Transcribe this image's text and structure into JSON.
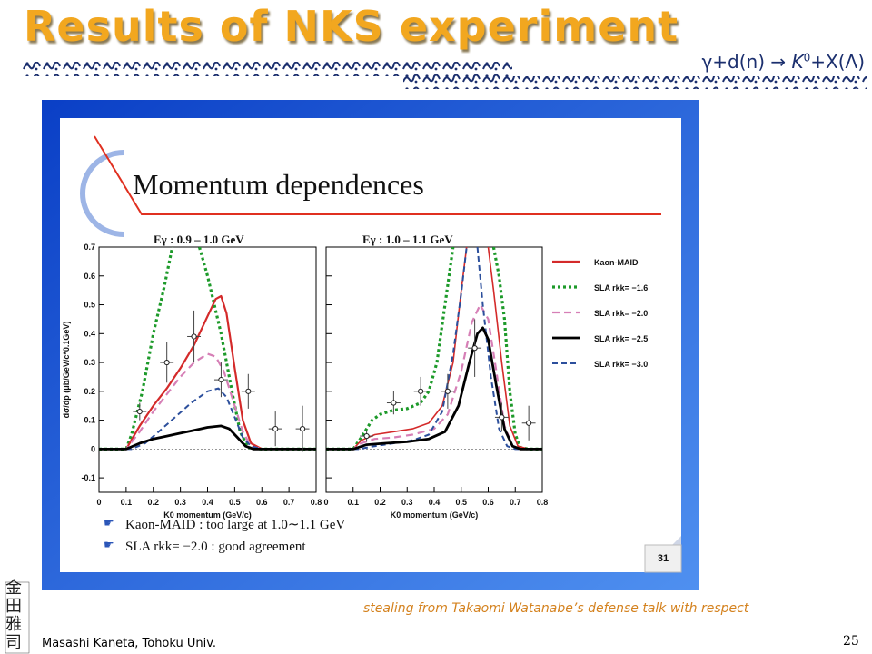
{
  "slide": {
    "title": "Results of NKS experiment",
    "reaction_parts": [
      "γ+d(n) → ",
      "K",
      "0",
      "+X(Λ)"
    ],
    "credit": "stealing from Takaomi Watanabe’s defense talk with respect",
    "author": "Masashi Kaneta, Tohoku Univ.",
    "page_number": "25",
    "seal_chars": "金田雅司",
    "colors": {
      "title": "#f2a71f",
      "reaction": "#1b2f6e",
      "credit": "#d4821f",
      "panel_blue": "#1f5fd8"
    }
  },
  "panel": {
    "heading": "Momentum dependences",
    "slide_number": "31",
    "bullets": [
      "Kaon-MAID : too large at 1.0∼1.1 GeV",
      "SLA rkk= −2.0 : good agreement"
    ],
    "bullet_icon": "pointing-hand-icon"
  },
  "chart_data": {
    "type": "line",
    "ylabel": "dσ/dp (μb/GeV/c*0.1GeV)",
    "xlabel": "K0 momentum (GeV/c)",
    "ylim": [
      -0.15,
      0.7
    ],
    "xlim": [
      0,
      0.8
    ],
    "xticks": [
      "0",
      "0.1",
      "0.2",
      "0.3",
      "0.4",
      "0.5",
      "0.6",
      "0.7",
      "0.8"
    ],
    "yticks": [
      "-0.1",
      "0",
      "0.1",
      "0.2",
      "0.3",
      "0.4",
      "0.5",
      "0.6",
      "0.7"
    ],
    "legend_position": "right",
    "legend": [
      {
        "label": "Kaon-MAID",
        "color": "#d42a2a",
        "dash": "solid",
        "width": 2.2
      },
      {
        "label": "SLA rkk= −1.6",
        "color": "#1d9a2a",
        "dash": "3,3",
        "width": 3.2
      },
      {
        "label": "SLA rkk= −2.0",
        "color": "#d67fb6",
        "dash": "8,5",
        "width": 2.2
      },
      {
        "label": "SLA rkk= −2.5",
        "color": "#000000",
        "dash": "solid",
        "width": 2.8
      },
      {
        "label": "SLA rkk= −3.0",
        "color": "#2c4f9c",
        "dash": "6,4",
        "width": 2.0
      }
    ],
    "panels": [
      {
        "title": "Eγ : 0.9 – 1.0 GeV",
        "series": [
          {
            "color": "#1d9a2a",
            "dash": "3,3",
            "width": 3.2,
            "points": [
              [
                0,
                0
              ],
              [
                0.1,
                0
              ],
              [
                0.12,
                0.05
              ],
              [
                0.16,
                0.2
              ],
              [
                0.2,
                0.4
              ],
              [
                0.24,
                0.56
              ],
              [
                0.27,
                0.7
              ]
            ],
            "points2": [
              [
                0.37,
                0.7
              ],
              [
                0.4,
                0.6
              ],
              [
                0.45,
                0.4
              ],
              [
                0.49,
                0.2
              ],
              [
                0.52,
                0.06
              ],
              [
                0.55,
                0.005
              ],
              [
                0.6,
                0
              ],
              [
                0.8,
                0
              ]
            ]
          },
          {
            "color": "#d42a2a",
            "dash": "solid",
            "width": 2.2,
            "points": [
              [
                0,
                0
              ],
              [
                0.1,
                0
              ],
              [
                0.15,
                0.08
              ],
              [
                0.2,
                0.15
              ],
              [
                0.25,
                0.21
              ],
              [
                0.3,
                0.28
              ],
              [
                0.35,
                0.36
              ],
              [
                0.4,
                0.46
              ],
              [
                0.43,
                0.52
              ],
              [
                0.45,
                0.53
              ],
              [
                0.47,
                0.47
              ],
              [
                0.5,
                0.28
              ],
              [
                0.53,
                0.1
              ],
              [
                0.56,
                0.02
              ],
              [
                0.6,
                0
              ],
              [
                0.8,
                0
              ]
            ]
          },
          {
            "color": "#d67fb6",
            "dash": "8,5",
            "width": 2.2,
            "points": [
              [
                0,
                0
              ],
              [
                0.1,
                0
              ],
              [
                0.15,
                0.06
              ],
              [
                0.2,
                0.13
              ],
              [
                0.25,
                0.19
              ],
              [
                0.3,
                0.25
              ],
              [
                0.35,
                0.3
              ],
              [
                0.4,
                0.33
              ],
              [
                0.43,
                0.32
              ],
              [
                0.46,
                0.27
              ],
              [
                0.5,
                0.15
              ],
              [
                0.53,
                0.06
              ],
              [
                0.56,
                0.01
              ],
              [
                0.6,
                0
              ],
              [
                0.8,
                0
              ]
            ]
          },
          {
            "color": "#2c4f9c",
            "dash": "6,4",
            "width": 2.0,
            "points": [
              [
                0,
                0
              ],
              [
                0.12,
                0
              ],
              [
                0.17,
                0.02
              ],
              [
                0.22,
                0.06
              ],
              [
                0.28,
                0.11
              ],
              [
                0.34,
                0.16
              ],
              [
                0.4,
                0.2
              ],
              [
                0.44,
                0.21
              ],
              [
                0.47,
                0.18
              ],
              [
                0.5,
                0.11
              ],
              [
                0.53,
                0.04
              ],
              [
                0.56,
                0.01
              ],
              [
                0.6,
                0
              ],
              [
                0.8,
                0
              ]
            ]
          },
          {
            "color": "#000000",
            "dash": "solid",
            "width": 2.8,
            "points": [
              [
                0,
                0
              ],
              [
                0.1,
                0
              ],
              [
                0.15,
                0.02
              ],
              [
                0.2,
                0.035
              ],
              [
                0.25,
                0.045
              ],
              [
                0.3,
                0.055
              ],
              [
                0.35,
                0.065
              ],
              [
                0.4,
                0.075
              ],
              [
                0.45,
                0.08
              ],
              [
                0.48,
                0.07
              ],
              [
                0.51,
                0.04
              ],
              [
                0.54,
                0.01
              ],
              [
                0.57,
                0
              ],
              [
                0.8,
                0
              ]
            ]
          }
        ],
        "datapoints": [
          {
            "x": 0.15,
            "y": 0.13,
            "xerr": 0.025,
            "yerr": 0.03
          },
          {
            "x": 0.25,
            "y": 0.3,
            "xerr": 0.025,
            "yerr": 0.07
          },
          {
            "x": 0.35,
            "y": 0.39,
            "xerr": 0.025,
            "yerr": 0.09
          },
          {
            "x": 0.45,
            "y": 0.24,
            "xerr": 0.025,
            "yerr": 0.06
          },
          {
            "x": 0.55,
            "y": 0.2,
            "xerr": 0.025,
            "yerr": 0.06
          },
          {
            "x": 0.65,
            "y": 0.07,
            "xerr": 0.025,
            "yerr": 0.06
          },
          {
            "x": 0.75,
            "y": 0.07,
            "xerr": 0.025,
            "yerr": 0.08
          }
        ]
      },
      {
        "title": "Eγ : 1.0 – 1.1 GeV",
        "series": [
          {
            "color": "#1d9a2a",
            "dash": "3,3",
            "width": 3.2,
            "points": [
              [
                0,
                0
              ],
              [
                0.1,
                0
              ],
              [
                0.13,
                0.04
              ],
              [
                0.17,
                0.1
              ],
              [
                0.2,
                0.12
              ],
              [
                0.25,
                0.135
              ],
              [
                0.3,
                0.14
              ],
              [
                0.35,
                0.16
              ],
              [
                0.38,
                0.2
              ],
              [
                0.41,
                0.3
              ],
              [
                0.44,
                0.5
              ],
              [
                0.47,
                0.7
              ]
            ],
            "points2": [
              [
                0.62,
                0.7
              ],
              [
                0.64,
                0.6
              ],
              [
                0.66,
                0.45
              ],
              [
                0.68,
                0.2
              ],
              [
                0.7,
                0.05
              ],
              [
                0.72,
                0.005
              ],
              [
                0.75,
                0
              ],
              [
                0.8,
                0
              ]
            ]
          },
          {
            "color": "#d42a2a",
            "dash": "solid",
            "width": 1.6,
            "points": [
              [
                0,
                0
              ],
              [
                0.1,
                0
              ],
              [
                0.13,
                0.03
              ],
              [
                0.18,
                0.05
              ],
              [
                0.25,
                0.06
              ],
              [
                0.32,
                0.07
              ],
              [
                0.38,
                0.09
              ],
              [
                0.43,
                0.15
              ],
              [
                0.47,
                0.3
              ],
              [
                0.5,
                0.55
              ],
              [
                0.52,
                0.7
              ]
            ],
            "points2": [
              [
                0.6,
                0.7
              ],
              [
                0.62,
                0.55
              ],
              [
                0.65,
                0.3
              ],
              [
                0.68,
                0.08
              ],
              [
                0.71,
                0.01
              ],
              [
                0.75,
                0
              ],
              [
                0.8,
                0
              ]
            ]
          },
          {
            "color": "#d67fb6",
            "dash": "8,5",
            "width": 2.2,
            "points": [
              [
                0,
                0
              ],
              [
                0.1,
                0
              ],
              [
                0.13,
                0.02
              ],
              [
                0.18,
                0.035
              ],
              [
                0.25,
                0.04
              ],
              [
                0.32,
                0.05
              ],
              [
                0.4,
                0.07
              ],
              [
                0.45,
                0.12
              ],
              [
                0.5,
                0.27
              ],
              [
                0.54,
                0.44
              ],
              [
                0.57,
                0.5
              ],
              [
                0.6,
                0.45
              ],
              [
                0.63,
                0.27
              ],
              [
                0.66,
                0.08
              ],
              [
                0.69,
                0.01
              ],
              [
                0.72,
                0
              ],
              [
                0.8,
                0
              ]
            ]
          },
          {
            "color": "#2c4f9c",
            "dash": "6,4",
            "width": 2.0,
            "points": [
              [
                0,
                0
              ],
              [
                0.12,
                0
              ],
              [
                0.18,
                0.01
              ],
              [
                0.25,
                0.02
              ],
              [
                0.32,
                0.03
              ],
              [
                0.38,
                0.05
              ],
              [
                0.43,
                0.13
              ],
              [
                0.47,
                0.33
              ],
              [
                0.5,
                0.54
              ],
              [
                0.52,
                0.7
              ]
            ],
            "points2": [
              [
                0.56,
                0.7
              ],
              [
                0.58,
                0.5
              ],
              [
                0.61,
                0.25
              ],
              [
                0.64,
                0.07
              ],
              [
                0.67,
                0.01
              ],
              [
                0.7,
                0
              ],
              [
                0.8,
                0
              ]
            ]
          },
          {
            "color": "#000000",
            "dash": "solid",
            "width": 2.8,
            "points": [
              [
                0,
                0
              ],
              [
                0.1,
                0
              ],
              [
                0.15,
                0.015
              ],
              [
                0.22,
                0.02
              ],
              [
                0.3,
                0.025
              ],
              [
                0.38,
                0.035
              ],
              [
                0.44,
                0.06
              ],
              [
                0.49,
                0.15
              ],
              [
                0.53,
                0.3
              ],
              [
                0.56,
                0.4
              ],
              [
                0.58,
                0.42
              ],
              [
                0.6,
                0.38
              ],
              [
                0.63,
                0.22
              ],
              [
                0.66,
                0.07
              ],
              [
                0.69,
                0.01
              ],
              [
                0.72,
                0
              ],
              [
                0.8,
                0
              ]
            ]
          }
        ],
        "datapoints": [
          {
            "x": 0.15,
            "y": 0.045,
            "xerr": 0.025,
            "yerr": 0.02
          },
          {
            "x": 0.25,
            "y": 0.16,
            "xerr": 0.025,
            "yerr": 0.04
          },
          {
            "x": 0.35,
            "y": 0.2,
            "xerr": 0.025,
            "yerr": 0.05
          },
          {
            "x": 0.45,
            "y": 0.2,
            "xerr": 0.025,
            "yerr": 0.06
          },
          {
            "x": 0.55,
            "y": 0.35,
            "xerr": 0.025,
            "yerr": 0.1
          },
          {
            "x": 0.65,
            "y": 0.11,
            "xerr": 0.025,
            "yerr": 0.05
          },
          {
            "x": 0.75,
            "y": 0.09,
            "xerr": 0.025,
            "yerr": 0.06
          }
        ]
      }
    ]
  }
}
